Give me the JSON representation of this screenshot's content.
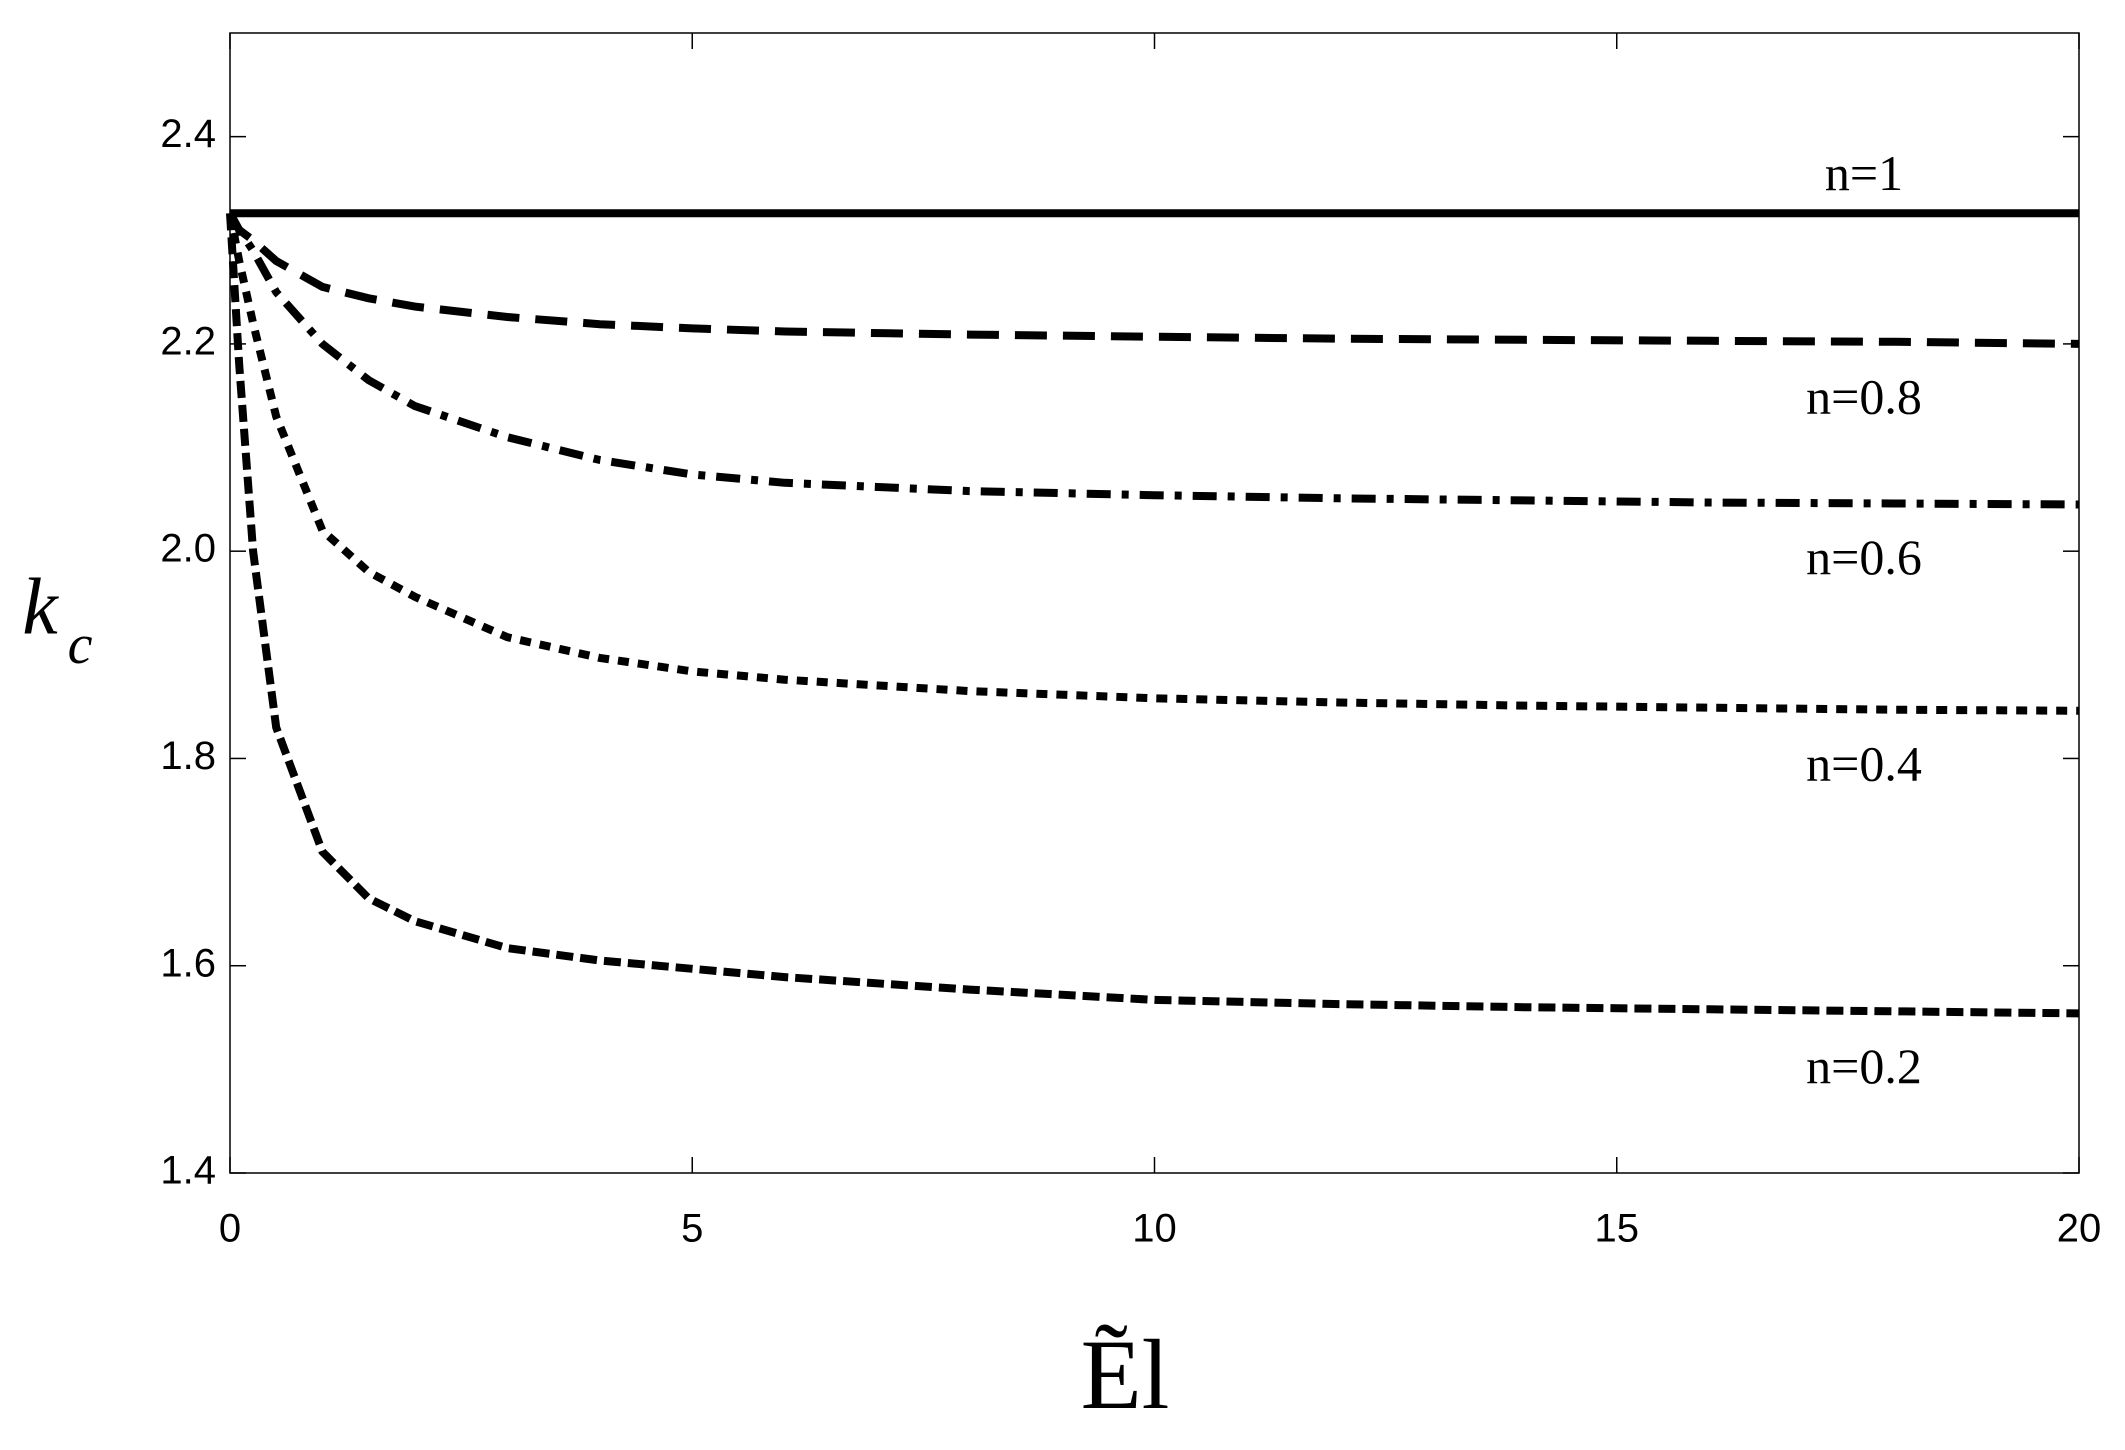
{
  "chart_data": {
    "type": "line",
    "xlabel": "Ẽl",
    "ylabel": "k",
    "ylabel_subscript": "c",
    "x": [
      0,
      0.1,
      0.25,
      0.5,
      1,
      1.5,
      2,
      3,
      4,
      5,
      6,
      8,
      10,
      12,
      14,
      16,
      18,
      20
    ],
    "series": [
      {
        "name": "n=1",
        "color": "#000000",
        "style": "solid",
        "label_side": "above",
        "values": [
          2.326,
          2.326,
          2.326,
          2.326,
          2.326,
          2.326,
          2.326,
          2.326,
          2.326,
          2.326,
          2.326,
          2.326,
          2.326,
          2.326,
          2.326,
          2.326,
          2.326,
          2.326
        ]
      },
      {
        "name": "n=0.8",
        "color": "#000000",
        "style": "longdash",
        "label_side": "below",
        "values": [
          2.326,
          2.31,
          2.3,
          2.28,
          2.255,
          2.244,
          2.236,
          2.226,
          2.219,
          2.215,
          2.212,
          2.209,
          2.207,
          2.205,
          2.204,
          2.203,
          2.202,
          2.2
        ]
      },
      {
        "name": "n=0.6",
        "color": "#000000",
        "style": "dashdot",
        "label_side": "below",
        "values": [
          2.326,
          2.31,
          2.29,
          2.25,
          2.2,
          2.165,
          2.14,
          2.11,
          2.088,
          2.074,
          2.066,
          2.058,
          2.054,
          2.051,
          2.049,
          2.047,
          2.046,
          2.045
        ]
      },
      {
        "name": "n=0.4",
        "color": "#000000",
        "style": "dotted",
        "label_side": "below",
        "values": [
          2.326,
          2.28,
          2.22,
          2.13,
          2.02,
          1.98,
          1.956,
          1.917,
          1.897,
          1.884,
          1.876,
          1.865,
          1.858,
          1.854,
          1.851,
          1.849,
          1.847,
          1.846
        ]
      },
      {
        "name": "n=0.2",
        "color": "#000000",
        "style": "dashed",
        "label_side": "below",
        "values": [
          2.326,
          2.18,
          2.0,
          1.83,
          1.71,
          1.665,
          1.643,
          1.617,
          1.605,
          1.597,
          1.589,
          1.577,
          1.567,
          1.563,
          1.56,
          1.558,
          1.556,
          1.554
        ]
      }
    ],
    "xlim": [
      0,
      20
    ],
    "xticks": [
      0,
      5,
      10,
      15,
      20
    ],
    "ylim": [
      1.4,
      2.5
    ],
    "yticks": [
      1.4,
      1.6,
      1.8,
      {
        "value": 2,
        "label": "2.0"
      },
      2.2,
      2.4
    ],
    "grid": false
  }
}
